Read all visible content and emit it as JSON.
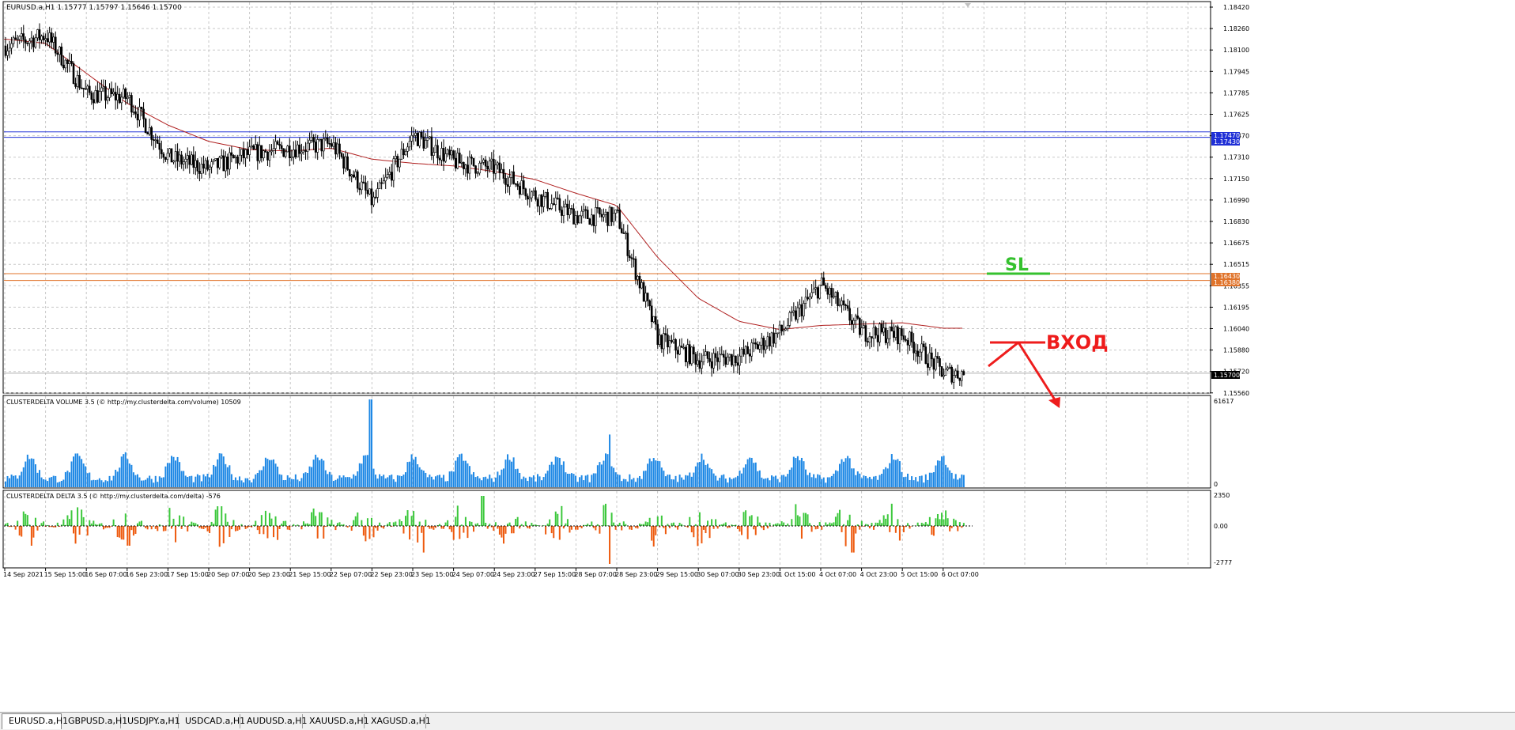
{
  "window": {
    "symbol_header": "EURUSD.a,H1  1.15777 1.15797 1.15646 1.15700"
  },
  "price_axis": {
    "ticks": [
      "1.18420",
      "1.18260",
      "1.18100",
      "1.17945",
      "1.17785",
      "1.17625",
      "1.17470",
      "1.17310",
      "1.17150",
      "1.16990",
      "1.16830",
      "1.16675",
      "1.16515",
      "1.16355",
      "1.16195",
      "1.16040",
      "1.15880",
      "1.15720",
      "1.15560"
    ]
  },
  "levels": {
    "blue_upper": "1.17470",
    "blue_lower": "1.17430",
    "orange_upper": "1.16430",
    "orange_lower": "1.16380",
    "current": "1.15700",
    "colors": {
      "blue": "#1f2fd6",
      "orange": "#e0732a",
      "current_bg": "#000000"
    }
  },
  "annotations": {
    "sl_label": "SL",
    "sl_color": "#35c12e",
    "entry_label": "ВХОД",
    "entry_color": "#ee1c1c"
  },
  "volume_panel": {
    "title": "CLUSTERDELTA VOLUME 3.5 (© http://my.clusterdelta.com/volume) 10509",
    "max_label": "61617",
    "zero_label": "0",
    "color": "#1e88e5"
  },
  "delta_panel": {
    "title": "CLUSTERDELTA DELTA 3.5 (© http://my.clusterdelta.com/delta) -576",
    "max_label": "2350",
    "zero_label": "0.00",
    "min_label": "-2777",
    "pos_color": "#3cc83c",
    "neg_color": "#ee5a0e"
  },
  "time_axis": {
    "ticks": [
      "14 Sep 2021",
      "15 Sep 15:00",
      "16 Sep 07:00",
      "16 Sep 23:00",
      "17 Sep 15:00",
      "20 Sep 07:00",
      "20 Sep 23:00",
      "21 Sep 15:00",
      "22 Sep 07:00",
      "22 Sep 23:00",
      "23 Sep 15:00",
      "24 Sep 07:00",
      "24 Sep 23:00",
      "27 Sep 15:00",
      "28 Sep 07:00",
      "28 Sep 23:00",
      "29 Sep 15:00",
      "30 Sep 07:00",
      "30 Sep 23:00",
      "1 Oct 15:00",
      "4 Oct 07:00",
      "4 Oct 23:00",
      "5 Oct 15:00",
      "6 Oct 07:00"
    ]
  },
  "tabs": [
    {
      "label": "EURUSD.a,H1",
      "active": true
    },
    {
      "label": "GBPUSD.a,H1",
      "active": false
    },
    {
      "label": "USDJPY.a,H1",
      "active": false
    },
    {
      "label": "USDCAD.a,H1",
      "active": false
    },
    {
      "label": "AUDUSD.a,H1",
      "active": false
    },
    {
      "label": "XAUUSD.a,H1",
      "active": false
    },
    {
      "label": "XAGUSD.a,H1",
      "active": false
    }
  ],
  "chart_data": {
    "type": "candlestick",
    "title": "EURUSD.a,H1",
    "timeframe": "H1",
    "ylim": [
      1.1556,
      1.1842
    ],
    "price_path": [
      {
        "t": "14 Sep 2021",
        "close": 1.181
      },
      {
        "t": "15 Sep 15:00",
        "close": 1.1818
      },
      {
        "t": "16 Sep 07:00",
        "close": 1.1775
      },
      {
        "t": "16 Sep 23:00",
        "close": 1.1772
      },
      {
        "t": "17 Sep 15:00",
        "close": 1.1728
      },
      {
        "t": "20 Sep 07:00",
        "close": 1.172
      },
      {
        "t": "20 Sep 23:00",
        "close": 1.1731
      },
      {
        "t": "21 Sep 15:00",
        "close": 1.1735
      },
      {
        "t": "22 Sep 07:00",
        "close": 1.1738
      },
      {
        "t": "22 Sep 23:00",
        "close": 1.1695
      },
      {
        "t": "23 Sep 15:00",
        "close": 1.1745
      },
      {
        "t": "24 Sep 07:00",
        "close": 1.1725
      },
      {
        "t": "24 Sep 23:00",
        "close": 1.172
      },
      {
        "t": "27 Sep 15:00",
        "close": 1.17
      },
      {
        "t": "28 Sep 07:00",
        "close": 1.1685
      },
      {
        "t": "28 Sep 23:00",
        "close": 1.1685
      },
      {
        "t": "29 Sep 15:00",
        "close": 1.1595
      },
      {
        "t": "30 Sep 07:00",
        "close": 1.158
      },
      {
        "t": "30 Sep 23:00",
        "close": 1.1582
      },
      {
        "t": "1 Oct 15:00",
        "close": 1.16
      },
      {
        "t": "4 Oct 07:00",
        "close": 1.1635
      },
      {
        "t": "4 Oct 23:00",
        "close": 1.16
      },
      {
        "t": "5 Oct 15:00",
        "close": 1.1598
      },
      {
        "t": "6 Oct 07:00",
        "close": 1.157
      }
    ],
    "moving_average": [
      1.1815,
      1.1812,
      1.179,
      1.1768,
      1.1752,
      1.174,
      1.1734,
      1.1733,
      1.1735,
      1.1727,
      1.1724,
      1.1722,
      1.1718,
      1.1712,
      1.1702,
      1.1693,
      1.1655,
      1.1625,
      1.1608,
      1.1602,
      1.1605,
      1.1606,
      1.1607,
      1.1603
    ]
  }
}
